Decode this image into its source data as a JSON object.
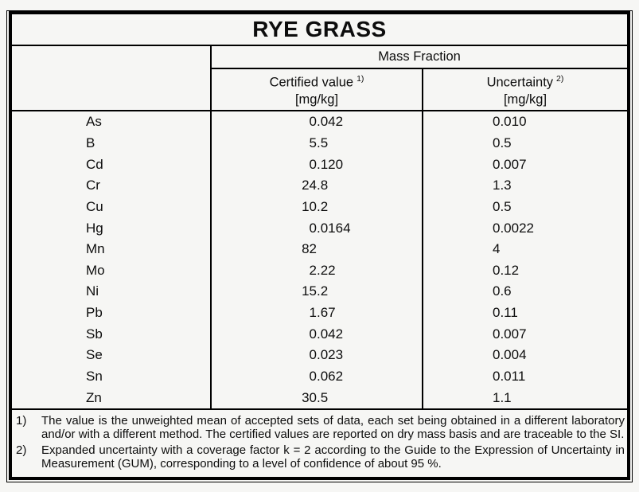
{
  "title": "RYE GRASS",
  "table": {
    "group_header": "Mass Fraction",
    "columns": [
      {
        "label": "Certified value",
        "sup": "1)",
        "unit": "[mg/kg]"
      },
      {
        "label": "Uncertainty",
        "sup": "2)",
        "unit": "[mg/kg]"
      }
    ],
    "rows": [
      {
        "element": "As",
        "certified": "0.042",
        "uncertainty": "0.010"
      },
      {
        "element": "B",
        "certified": "5.5",
        "uncertainty": "0.5"
      },
      {
        "element": "Cd",
        "certified": "0.120",
        "uncertainty": "0.007"
      },
      {
        "element": "Cr",
        "certified": "24.8",
        "uncertainty": "1.3"
      },
      {
        "element": "Cu",
        "certified": "10.2",
        "uncertainty": "0.5"
      },
      {
        "element": "Hg",
        "certified": "0.0164",
        "uncertainty": "0.0022"
      },
      {
        "element": "Mn",
        "certified": "82",
        "uncertainty": "4"
      },
      {
        "element": "Mo",
        "certified": "2.22",
        "uncertainty": "0.12"
      },
      {
        "element": "Ni",
        "certified": "15.2",
        "uncertainty": "0.6"
      },
      {
        "element": "Pb",
        "certified": "1.67",
        "uncertainty": "0.11"
      },
      {
        "element": "Sb",
        "certified": "0.042",
        "uncertainty": "0.007"
      },
      {
        "element": "Se",
        "certified": "0.023",
        "uncertainty": "0.004"
      },
      {
        "element": "Sn",
        "certified": "0.062",
        "uncertainty": "0.011"
      },
      {
        "element": "Zn",
        "certified": "30.5",
        "uncertainty": "1.1"
      }
    ]
  },
  "footnotes": [
    {
      "marker": "1)",
      "text": "The value is the unweighted mean of accepted sets of data, each set being obtained in a different laboratory and/or with a different method. The certified values are reported on dry mass basis and are traceable to the SI."
    },
    {
      "marker": "2)",
      "text": "Expanded uncertainty with a coverage factor k = 2 according to the Guide to the Expression of Uncertainty in Measurement (GUM), corresponding to a level of confidence of about 95 %."
    }
  ],
  "colors": {
    "background": "#f6f6f4",
    "border": "#000000",
    "text": "#0d0d0d"
  }
}
